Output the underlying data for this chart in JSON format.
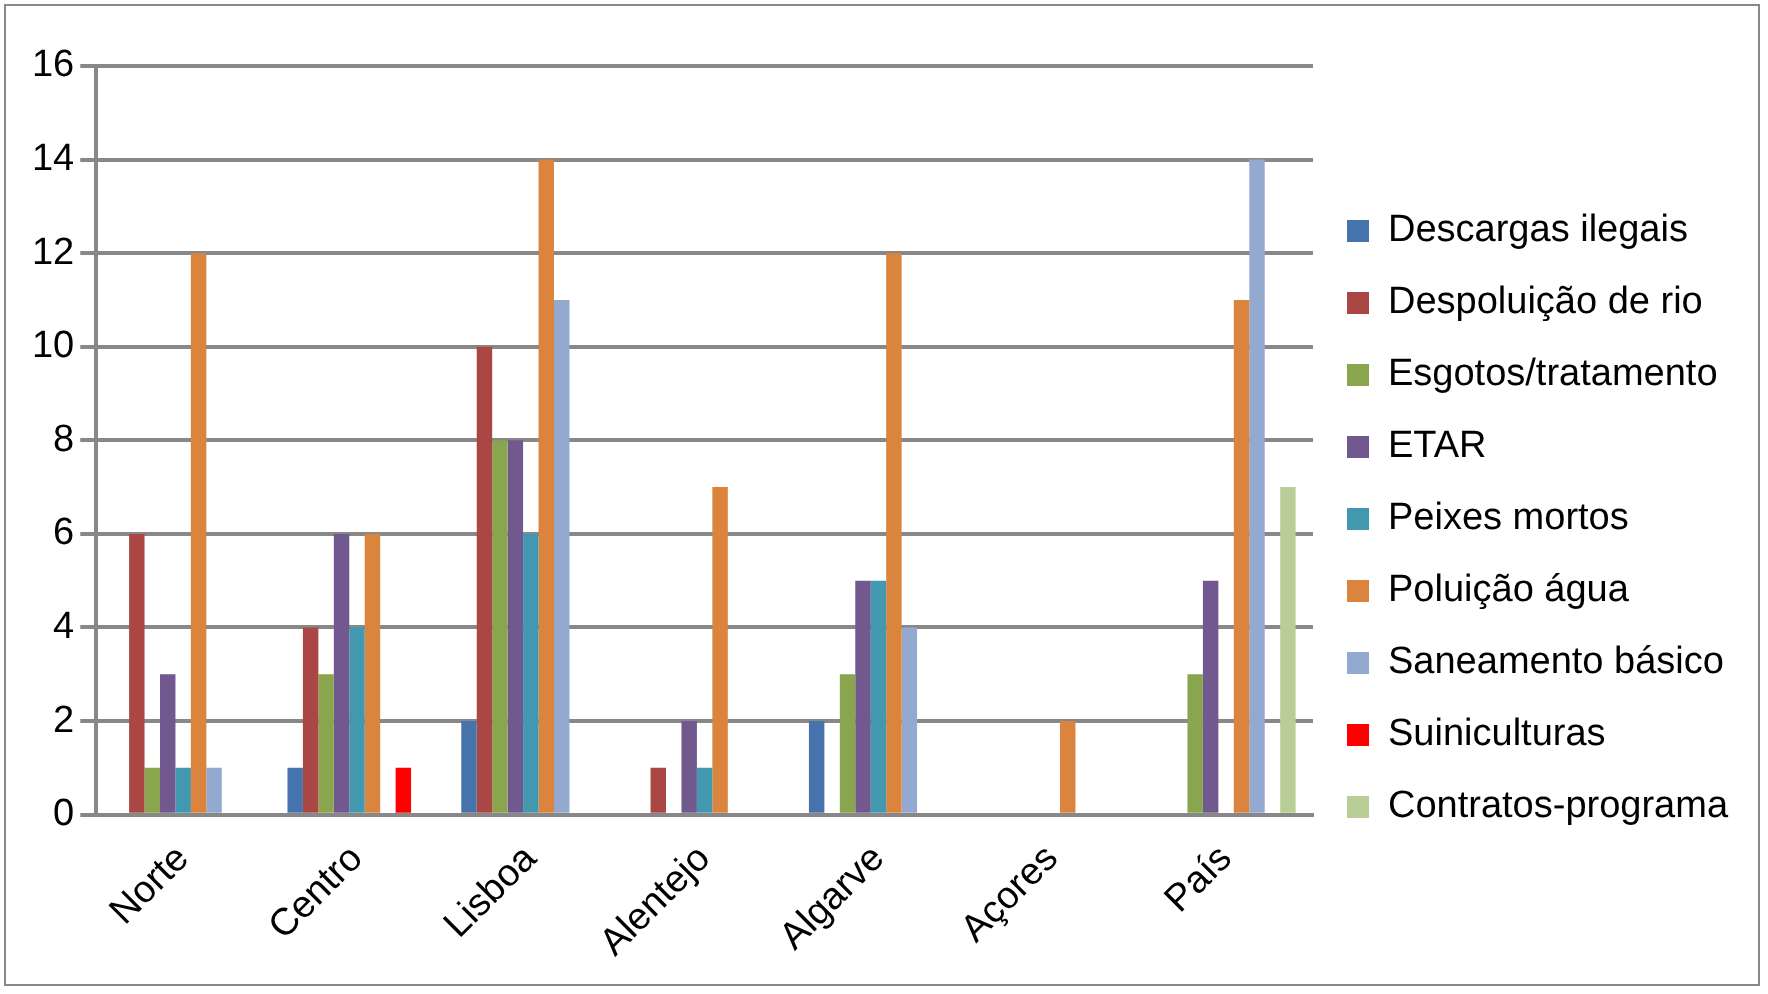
{
  "chart_data": {
    "type": "bar",
    "categories": [
      "Norte",
      "Centro",
      "Lisboa",
      "Alentejo",
      "Algarve",
      "Açores",
      "País"
    ],
    "series": [
      {
        "name": "Descargas ilegais",
        "color": "#4673ab",
        "values": [
          0,
          1,
          2,
          0,
          2,
          0,
          0
        ]
      },
      {
        "name": "Despoluição de rio",
        "color": "#aa4744",
        "values": [
          6,
          4,
          10,
          1,
          0,
          0,
          0
        ]
      },
      {
        "name": "Esgotos/tratamento",
        "color": "#89a54e",
        "values": [
          1,
          3,
          8,
          0,
          3,
          0,
          3
        ]
      },
      {
        "name": "ETAR",
        "color": "#71588f",
        "values": [
          3,
          6,
          8,
          2,
          5,
          0,
          5
        ]
      },
      {
        "name": "Peixes mortos",
        "color": "#4198af",
        "values": [
          1,
          4,
          6,
          1,
          5,
          0,
          0
        ]
      },
      {
        "name": "Poluição água",
        "color": "#db843d",
        "values": [
          12,
          6,
          14,
          7,
          12,
          2,
          11
        ]
      },
      {
        "name": "Saneamento básico",
        "color": "#93a9cf",
        "values": [
          1,
          0,
          11,
          0,
          4,
          0,
          14
        ]
      },
      {
        "name": "Suiniculturas",
        "color": "#ff0000",
        "values": [
          0,
          1,
          0,
          0,
          0,
          0,
          0
        ]
      },
      {
        "name": "Contratos-programa",
        "color": "#b9cd96",
        "values": [
          0,
          0,
          0,
          0,
          0,
          0,
          7
        ]
      }
    ],
    "ylim": [
      0,
      16
    ],
    "yticks": [
      0,
      2,
      4,
      6,
      8,
      10,
      12,
      14,
      16
    ],
    "grid": "y",
    "legend": "right"
  }
}
